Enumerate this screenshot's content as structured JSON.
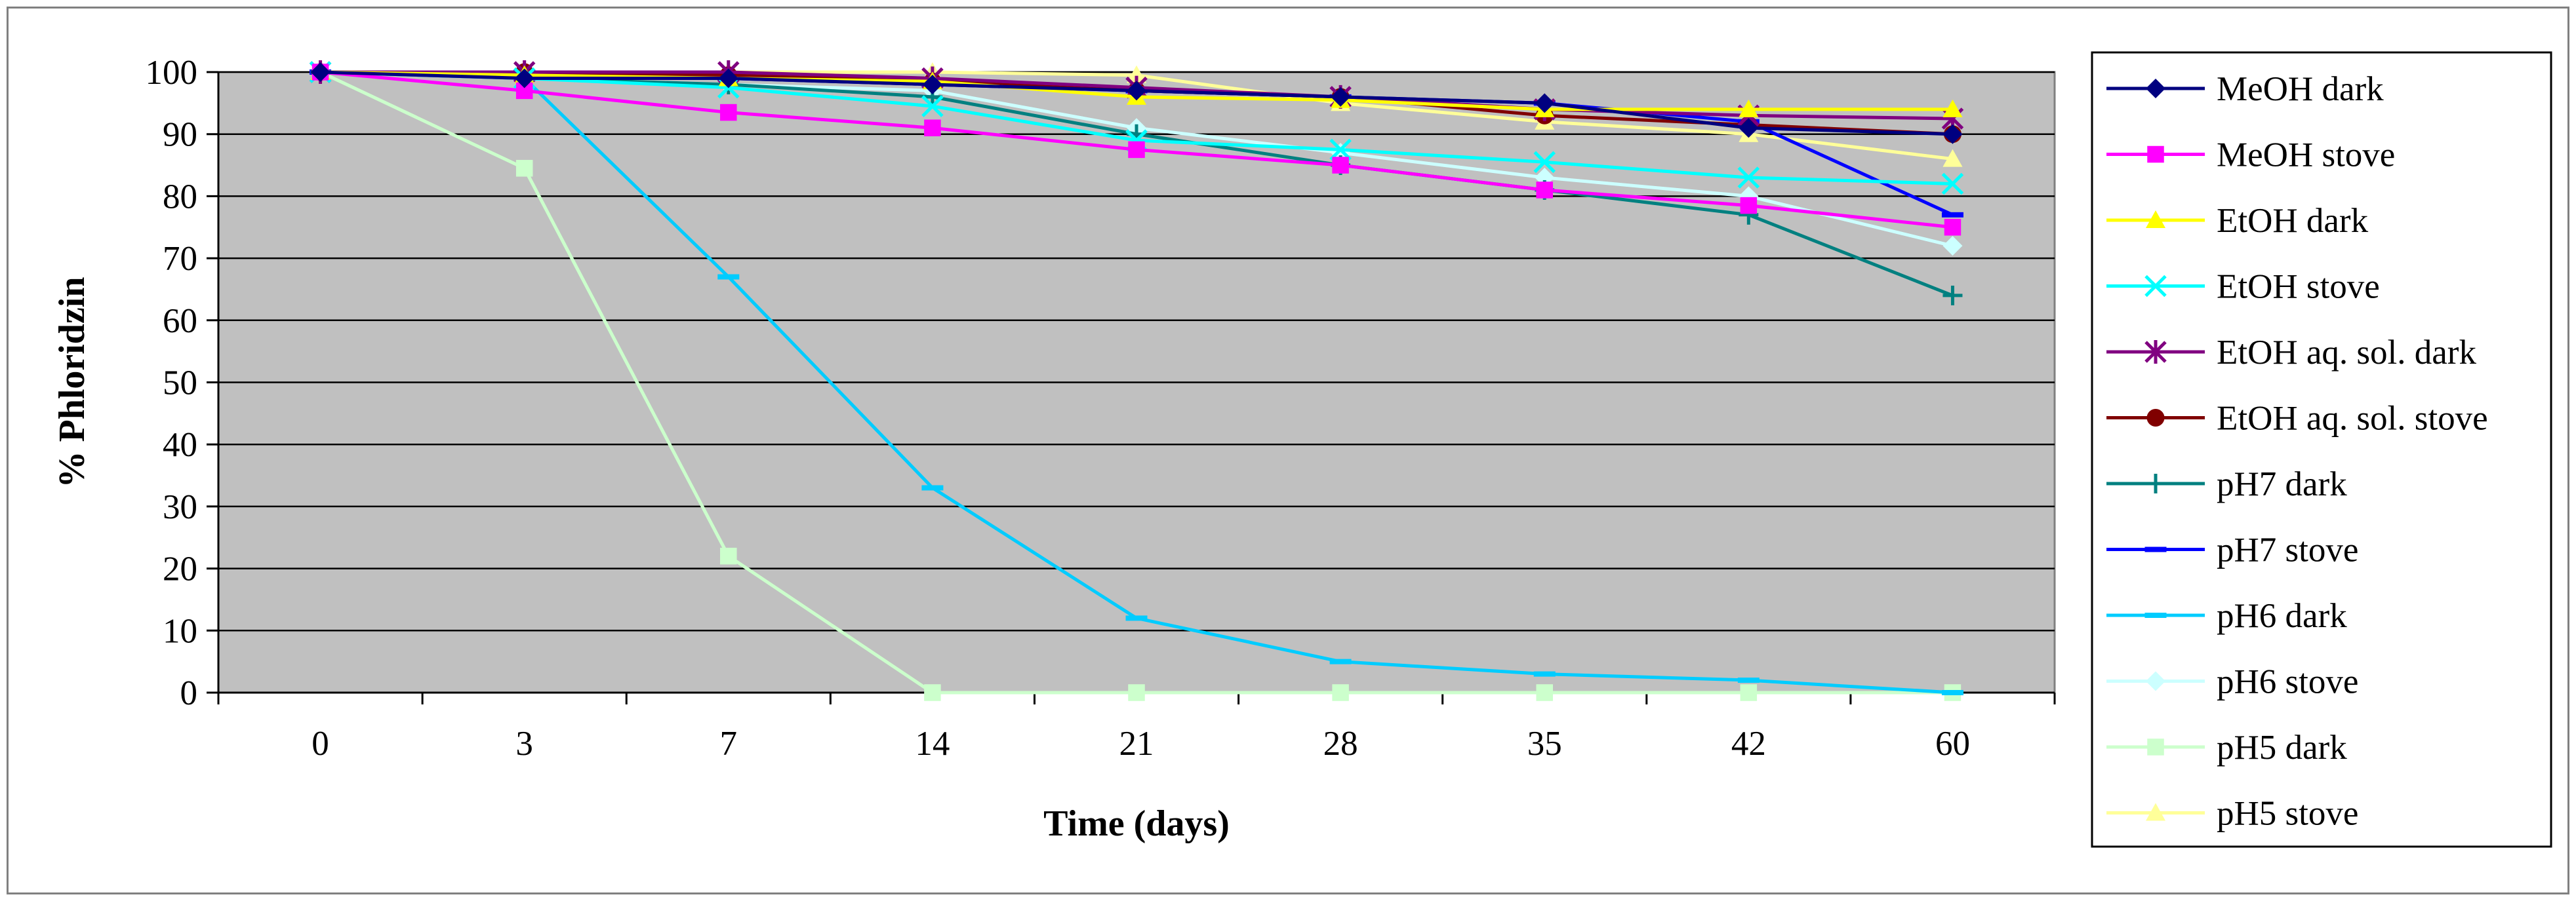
{
  "chart_data": {
    "type": "line",
    "xlabel": "Time (days)",
    "ylabel": "% Phloridzin",
    "categories": [
      "0",
      "3",
      "7",
      "14",
      "21",
      "28",
      "35",
      "42",
      "60"
    ],
    "ylim": [
      0,
      100
    ],
    "yticks": [
      "0",
      "10",
      "20",
      "30",
      "40",
      "50",
      "60",
      "70",
      "80",
      "90",
      "100"
    ],
    "grid": "horizontal",
    "legend_position": "right",
    "plot_background": "#C0C0C0",
    "series": [
      {
        "name": "MeOH dark",
        "color": "#000080",
        "marker": "diamond",
        "values": [
          100,
          99,
          99,
          98,
          97,
          96,
          95,
          91,
          90
        ]
      },
      {
        "name": "MeOH stove",
        "color": "#FF00FF",
        "marker": "square",
        "values": [
          100,
          97,
          93.5,
          91,
          87.5,
          85,
          81,
          78.5,
          75
        ]
      },
      {
        "name": "EtOH dark",
        "color": "#FFFF00",
        "marker": "triangle",
        "values": [
          100,
          99.5,
          99,
          98.5,
          96,
          95.5,
          94,
          94,
          94
        ]
      },
      {
        "name": "EtOH stove",
        "color": "#00FFFF",
        "marker": "x",
        "values": [
          100,
          99,
          97.5,
          94.5,
          89,
          87.5,
          85.5,
          83,
          82
        ]
      },
      {
        "name": "EtOH aq. sol. dark",
        "color": "#800080",
        "marker": "star",
        "values": [
          100,
          100,
          100,
          99,
          97.5,
          96,
          94,
          93,
          92.5
        ]
      },
      {
        "name": "EtOH aq. sol. stove",
        "color": "#800000",
        "marker": "circle",
        "values": [
          100,
          100,
          99.5,
          98.5,
          97,
          96,
          93,
          91.5,
          90
        ]
      },
      {
        "name": "pH7 dark",
        "color": "#008080",
        "marker": "plus",
        "values": [
          100,
          99,
          98,
          96,
          90,
          85,
          81,
          77,
          64
        ]
      },
      {
        "name": "pH7 stove",
        "color": "#0000FF",
        "marker": "dash",
        "values": [
          100,
          100,
          99,
          98,
          97,
          96,
          95,
          92,
          77
        ]
      },
      {
        "name": "pH6 dark",
        "color": "#00CCFF",
        "marker": "dash",
        "values": [
          100,
          99,
          67,
          33,
          12,
          5,
          3,
          2,
          0
        ]
      },
      {
        "name": "pH6 stove",
        "color": "#CCFFFF",
        "marker": "diamond",
        "values": [
          100,
          99,
          98,
          97,
          91,
          87,
          83,
          80,
          72
        ]
      },
      {
        "name": "pH5 dark",
        "color": "#CCFFCC",
        "marker": "square",
        "values": [
          100,
          84.5,
          22,
          0,
          0,
          0,
          0,
          0,
          0
        ]
      },
      {
        "name": "pH5 stove",
        "color": "#FFFF99",
        "marker": "triangle",
        "values": [
          100,
          100,
          100,
          100,
          99.5,
          95,
          92,
          90,
          86
        ]
      }
    ]
  }
}
